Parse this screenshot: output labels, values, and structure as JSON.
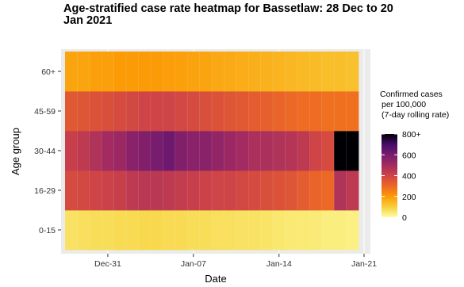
{
  "chart_data": {
    "type": "heatmap",
    "title": "Age-stratified case rate heatmap for Bassetlaw: 28 Dec to 20 Jan 2021",
    "xlabel": "Date",
    "ylabel": "Age group",
    "x_ticks": [
      "Dec-31",
      "Jan-07",
      "Jan-14",
      "Jan-21"
    ],
    "x": [
      "Dec-28",
      "Dec-29",
      "Dec-30",
      "Dec-31",
      "Jan-01",
      "Jan-02",
      "Jan-03",
      "Jan-04",
      "Jan-05",
      "Jan-06",
      "Jan-07",
      "Jan-08",
      "Jan-09",
      "Jan-10",
      "Jan-11",
      "Jan-12",
      "Jan-13",
      "Jan-14",
      "Jan-15",
      "Jan-16",
      "Jan-17",
      "Jan-18",
      "Jan-19",
      "Jan-20"
    ],
    "y": [
      "0-15",
      "16-29",
      "30-44",
      "45-59",
      "60+"
    ],
    "series": [
      {
        "name": "0-15",
        "values": [
          60,
          65,
          70,
          70,
          75,
          75,
          80,
          80,
          75,
          75,
          70,
          70,
          65,
          65,
          60,
          60,
          55,
          50,
          45,
          45,
          40,
          35,
          35,
          30
        ]
      },
      {
        "name": "16-29",
        "values": [
          380,
          390,
          400,
          410,
          420,
          440,
          450,
          450,
          440,
          430,
          420,
          410,
          400,
          400,
          390,
          380,
          370,
          360,
          350,
          330,
          310,
          300,
          470,
          440
        ]
      },
      {
        "name": "30-44",
        "values": [
          420,
          440,
          470,
          500,
          520,
          560,
          580,
          600,
          620,
          580,
          560,
          560,
          540,
          520,
          500,
          480,
          480,
          470,
          460,
          440,
          400,
          380,
          800,
          800
        ]
      },
      {
        "name": "45-59",
        "values": [
          340,
          350,
          360,
          370,
          380,
          390,
          400,
          400,
          400,
          390,
          380,
          370,
          360,
          350,
          340,
          330,
          320,
          310,
          300,
          290,
          290,
          280,
          280,
          280
        ]
      },
      {
        "name": "60+",
        "values": [
          180,
          180,
          190,
          190,
          200,
          200,
          200,
          200,
          195,
          190,
          185,
          180,
          175,
          170,
          165,
          160,
          155,
          150,
          145,
          140,
          135,
          130,
          130,
          125
        ]
      }
    ],
    "legend": {
      "title": [
        "Confirmed cases",
        "per 100,000",
        "(7-day rolling rate)"
      ],
      "ticks": [
        "800+",
        "600",
        "400",
        "200",
        "0"
      ],
      "tick_values": [
        800,
        600,
        400,
        200,
        0
      ],
      "range": [
        0,
        800
      ],
      "colormap": "inferno",
      "placement": "right"
    },
    "grid": true,
    "colors": {
      "panel_background": "#ebebeb",
      "grid": "#ffffff"
    }
  }
}
